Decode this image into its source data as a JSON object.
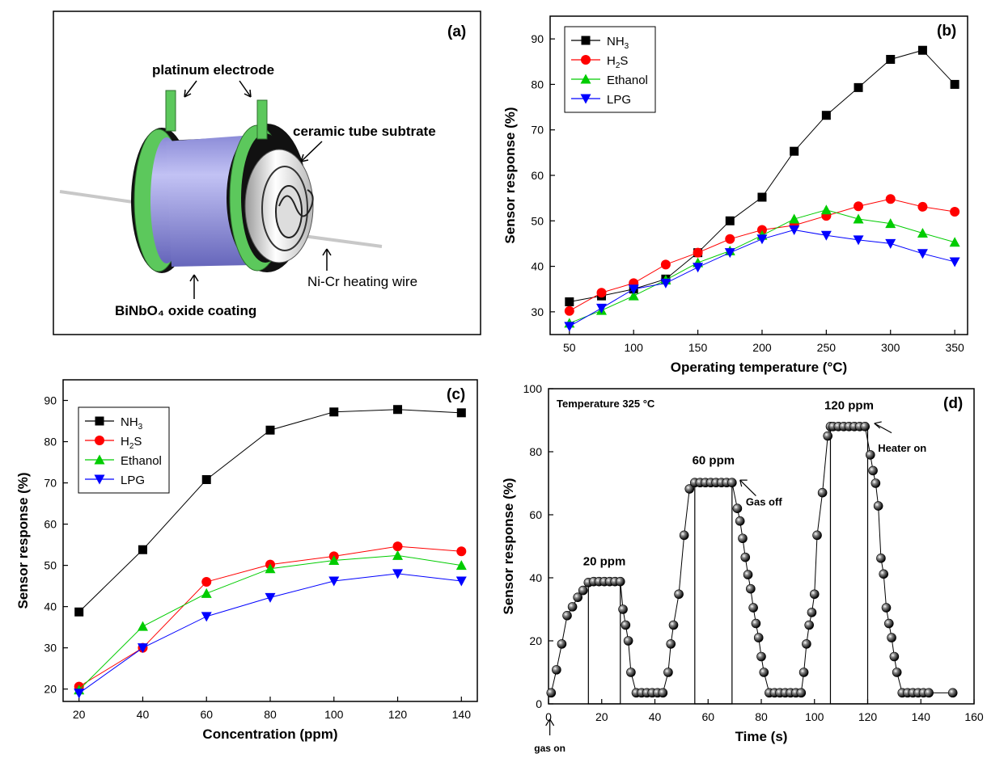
{
  "panel_a": {
    "label": "(a)",
    "labels": {
      "electrode": "platinum electrode",
      "tube": "ceramic tube subtrate",
      "wire": "Ni-Cr heating wire",
      "coating": "BiNbO₄ oxide coating"
    },
    "colors": {
      "coating": "#a8a8e8",
      "electrode": "#5cc85c",
      "ring": "#111111"
    }
  },
  "chart_data": [
    {
      "id": "b",
      "panel_label": "(b)",
      "type": "line",
      "xlabel": "Operating temperature (°C)",
      "ylabel": "Sensor response (%)",
      "xlim": [
        35,
        360
      ],
      "ylim": [
        25,
        95
      ],
      "xticks": [
        50,
        100,
        150,
        200,
        250,
        300,
        350
      ],
      "yticks": [
        30,
        40,
        50,
        60,
        70,
        80,
        90
      ],
      "legend_position": "top-left",
      "x": [
        50,
        75,
        100,
        125,
        150,
        175,
        200,
        225,
        250,
        275,
        300,
        325,
        350
      ],
      "series": [
        {
          "name": "NH3",
          "legend_main": "NH",
          "legend_sub": "3",
          "legend_tail": "",
          "color": "#000000",
          "marker": "square",
          "values": [
            32.2,
            33.5,
            35.0,
            37.2,
            43.0,
            50.0,
            55.2,
            65.3,
            73.2,
            79.3,
            85.5,
            87.5,
            80.0
          ]
        },
        {
          "name": "H2S",
          "legend_main": "H",
          "legend_sub": "2",
          "legend_tail": "S",
          "color": "#ff0000",
          "marker": "circle",
          "values": [
            30.2,
            34.2,
            36.3,
            40.4,
            43.0,
            46.0,
            48.0,
            49.0,
            51.1,
            53.2,
            54.8,
            53.1,
            52.0
          ]
        },
        {
          "name": "Ethanol",
          "legend_main": "Ethanol",
          "legend_sub": "",
          "legend_tail": "",
          "color": "#00cc00",
          "marker": "triangle-up",
          "values": [
            27.5,
            30.3,
            33.5,
            37.0,
            40.8,
            43.4,
            46.8,
            50.4,
            52.4,
            50.4,
            49.4,
            47.3,
            45.3
          ]
        },
        {
          "name": "LPG",
          "legend_main": "LPG",
          "legend_sub": "",
          "legend_tail": "",
          "color": "#0000ff",
          "marker": "triangle-down",
          "values": [
            26.8,
            30.8,
            35.0,
            36.3,
            39.8,
            43.0,
            46.0,
            48.0,
            46.8,
            45.8,
            45.0,
            42.8,
            41.0
          ]
        }
      ]
    },
    {
      "id": "c",
      "panel_label": "(c)",
      "type": "line",
      "xlabel": "Concentration (ppm)",
      "ylabel": "Sensor response (%)",
      "xlim": [
        15,
        145
      ],
      "ylim": [
        17,
        95
      ],
      "xticks": [
        20,
        40,
        60,
        80,
        100,
        120,
        140
      ],
      "yticks": [
        20,
        30,
        40,
        50,
        60,
        70,
        80,
        90
      ],
      "legend_position": "top-left",
      "x": [
        20,
        40,
        60,
        80,
        100,
        120,
        140
      ],
      "series": [
        {
          "name": "NH3",
          "legend_main": "NH",
          "legend_sub": "3",
          "legend_tail": "",
          "color": "#000000",
          "marker": "square",
          "values": [
            38.7,
            53.8,
            70.8,
            82.8,
            87.2,
            87.8,
            87.0
          ]
        },
        {
          "name": "H2S",
          "legend_main": "H",
          "legend_sub": "2",
          "legend_tail": "S",
          "color": "#ff0000",
          "marker": "circle",
          "values": [
            20.6,
            30.0,
            46.0,
            50.2,
            52.2,
            54.6,
            53.4
          ]
        },
        {
          "name": "Ethanol",
          "legend_main": "Ethanol",
          "legend_sub": "",
          "legend_tail": "",
          "color": "#00cc00",
          "marker": "triangle-up",
          "values": [
            19.8,
            35.2,
            43.2,
            49.2,
            51.2,
            52.4,
            50.0
          ]
        },
        {
          "name": "LPG",
          "legend_main": "LPG",
          "legend_sub": "",
          "legend_tail": "",
          "color": "#0000ff",
          "marker": "triangle-down",
          "values": [
            19.0,
            30.0,
            37.6,
            42.2,
            46.2,
            48.0,
            46.2
          ]
        }
      ]
    },
    {
      "id": "d",
      "panel_label": "(d)",
      "type": "line",
      "xlabel": "Time (s)",
      "ylabel": "Sensor response (%)",
      "xlim": [
        0,
        160
      ],
      "ylim": [
        0,
        100
      ],
      "xticks": [
        0,
        20,
        40,
        60,
        80,
        100,
        120,
        140,
        160
      ],
      "yticks": [
        0,
        20,
        40,
        60,
        80,
        100
      ],
      "series": [
        {
          "name": "",
          "color": "#000000",
          "marker": "sphere",
          "x": [
            1,
            3,
            5,
            7,
            9,
            11,
            13,
            15,
            17,
            19,
            21,
            23,
            25,
            27,
            28,
            29,
            30,
            31,
            33,
            35,
            37,
            39,
            41,
            43,
            45,
            46,
            47,
            49,
            51,
            53,
            55,
            57,
            59,
            61,
            63,
            65,
            67,
            69,
            71,
            72,
            73,
            74,
            75,
            76,
            77,
            78,
            79,
            80,
            81,
            83,
            85,
            87,
            89,
            91,
            93,
            95,
            96,
            97,
            98,
            99,
            100,
            101,
            103,
            105,
            106,
            107,
            109,
            111,
            113,
            115,
            117,
            119,
            121,
            122,
            123,
            124,
            125,
            126,
            127,
            128,
            129,
            130,
            131,
            133,
            135,
            137,
            139,
            141,
            143,
            152
          ],
          "y": [
            3.5,
            10.8,
            19.0,
            28.0,
            30.8,
            33.8,
            36.0,
            38.5,
            38.8,
            38.8,
            38.8,
            38.8,
            38.8,
            38.8,
            30.0,
            25.0,
            20.0,
            10.0,
            3.5,
            3.5,
            3.5,
            3.5,
            3.5,
            3.5,
            10.0,
            19.0,
            25.0,
            34.8,
            53.5,
            68.2,
            70.2,
            70.2,
            70.2,
            70.2,
            70.2,
            70.2,
            70.2,
            70.2,
            62.0,
            58.0,
            52.5,
            46.5,
            41.0,
            36.5,
            30.5,
            25.5,
            21.0,
            15.0,
            10.0,
            3.5,
            3.5,
            3.5,
            3.5,
            3.5,
            3.5,
            3.5,
            10.0,
            19.0,
            25.0,
            29.0,
            34.8,
            53.5,
            67.0,
            85.0,
            88.0,
            88.0,
            88.0,
            88.0,
            88.0,
            88.0,
            88.0,
            88.0,
            79.0,
            74.0,
            70.0,
            62.8,
            46.2,
            41.2,
            30.5,
            25.5,
            21.0,
            15.0,
            10.0,
            3.5,
            3.5,
            3.5,
            3.5,
            3.5,
            3.5,
            3.5
          ]
        }
      ],
      "annotations": {
        "temperature": "Temperature 325 °C",
        "p20": "20 ppm",
        "p60": "60 ppm",
        "p120": "120 ppm",
        "gas_off": "Gas off",
        "heater_on": "Heater on",
        "gas_on": "gas on"
      }
    }
  ]
}
